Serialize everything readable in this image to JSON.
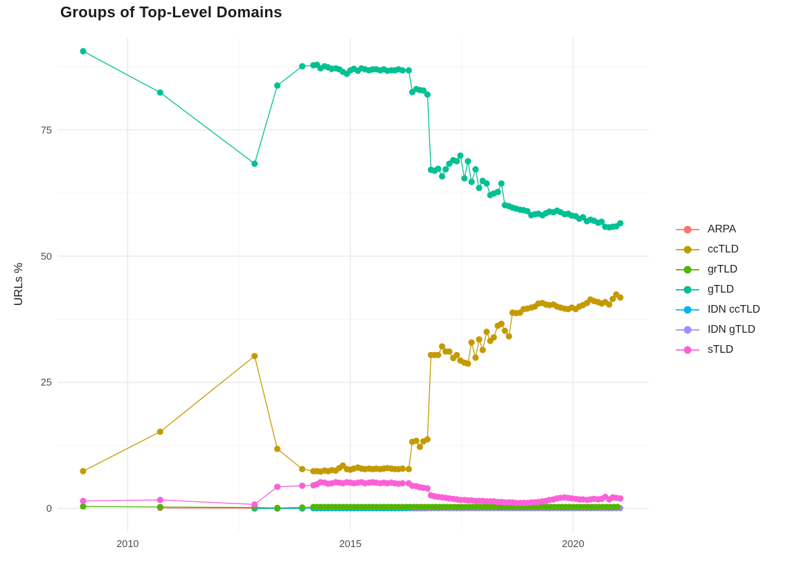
{
  "title": "Groups of Top-Level Domains",
  "chart_data": {
    "type": "line",
    "title": "Groups of Top-Level Domains",
    "xlabel": "",
    "ylabel": "URLs %",
    "x_ticks": [
      2010,
      2015,
      2020
    ],
    "x_minor_ticks": [
      2012.5,
      2017.5
    ],
    "y_ticks": [
      0,
      25,
      50,
      75
    ],
    "y_minor_ticks": [
      12.5,
      37.5,
      62.5,
      87.5
    ],
    "xlim": [
      2008.44,
      2021.7
    ],
    "ylim": [
      -4.5,
      93.2
    ],
    "grid": "on",
    "legend_position": "right",
    "grid_major_color": "#e8e8e8",
    "grid_minor_color": "#f3f3f3",
    "tick_label_color": "#4d4d4d",
    "point_radius": 4.6,
    "series": [
      {
        "name": "ARPA",
        "color": "#F8766D",
        "z": 1,
        "points": [
          [
            2010.73,
            0.1
          ],
          [
            2012.85,
            0.05
          ]
        ]
      },
      {
        "name": "ccTLD",
        "color": "#C49A00",
        "z": 5,
        "points": [
          [
            2009.0,
            7.4
          ],
          [
            2010.73,
            15.2
          ],
          [
            2012.85,
            30.2
          ],
          [
            2013.36,
            11.8
          ],
          [
            2013.92,
            7.8
          ],
          [
            2014.17,
            7.4
          ],
          [
            2014.25,
            7.4
          ],
          [
            2014.33,
            7.3
          ],
          [
            2014.42,
            7.5
          ],
          [
            2014.5,
            7.4
          ],
          [
            2014.58,
            7.6
          ],
          [
            2014.67,
            7.5
          ],
          [
            2014.75,
            8.0
          ],
          [
            2014.83,
            8.5
          ],
          [
            2014.92,
            7.8
          ],
          [
            2015.0,
            7.7
          ],
          [
            2015.08,
            7.9
          ],
          [
            2015.17,
            8.1
          ],
          [
            2015.25,
            7.9
          ],
          [
            2015.33,
            7.8
          ],
          [
            2015.42,
            7.9
          ],
          [
            2015.5,
            7.8
          ],
          [
            2015.58,
            7.9
          ],
          [
            2015.67,
            7.8
          ],
          [
            2015.75,
            7.9
          ],
          [
            2015.83,
            8.0
          ],
          [
            2015.92,
            7.9
          ],
          [
            2016.0,
            7.8
          ],
          [
            2016.08,
            7.8
          ],
          [
            2016.17,
            7.9
          ],
          [
            2016.31,
            7.8
          ],
          [
            2016.39,
            13.2
          ],
          [
            2016.48,
            13.4
          ],
          [
            2016.56,
            12.2
          ],
          [
            2016.64,
            13.3
          ],
          [
            2016.73,
            13.7
          ],
          [
            2016.81,
            30.4
          ],
          [
            2016.89,
            30.4
          ],
          [
            2016.97,
            30.4
          ],
          [
            2017.06,
            32.1
          ],
          [
            2017.14,
            31.1
          ],
          [
            2017.22,
            31.1
          ],
          [
            2017.31,
            29.8
          ],
          [
            2017.39,
            30.4
          ],
          [
            2017.47,
            29.3
          ],
          [
            2017.56,
            28.9
          ],
          [
            2017.64,
            28.7
          ],
          [
            2017.72,
            32.9
          ],
          [
            2017.81,
            29.9
          ],
          [
            2017.89,
            33.5
          ],
          [
            2017.97,
            31.4
          ],
          [
            2018.06,
            35.0
          ],
          [
            2018.14,
            33.2
          ],
          [
            2018.22,
            33.9
          ],
          [
            2018.31,
            36.2
          ],
          [
            2018.39,
            36.6
          ],
          [
            2018.47,
            35.2
          ],
          [
            2018.56,
            34.1
          ],
          [
            2018.64,
            38.8
          ],
          [
            2018.72,
            38.7
          ],
          [
            2018.81,
            38.8
          ],
          [
            2018.89,
            39.5
          ],
          [
            2018.97,
            39.6
          ],
          [
            2019.06,
            39.8
          ],
          [
            2019.14,
            40.0
          ],
          [
            2019.22,
            40.6
          ],
          [
            2019.31,
            40.7
          ],
          [
            2019.39,
            40.4
          ],
          [
            2019.47,
            40.3
          ],
          [
            2019.56,
            40.4
          ],
          [
            2019.64,
            40.0
          ],
          [
            2019.72,
            39.8
          ],
          [
            2019.81,
            39.6
          ],
          [
            2019.89,
            39.5
          ],
          [
            2019.97,
            39.8
          ],
          [
            2020.06,
            39.5
          ],
          [
            2020.14,
            40.0
          ],
          [
            2020.22,
            40.3
          ],
          [
            2020.31,
            40.7
          ],
          [
            2020.39,
            41.4
          ],
          [
            2020.47,
            41.1
          ],
          [
            2020.56,
            40.9
          ],
          [
            2020.64,
            40.6
          ],
          [
            2020.72,
            40.9
          ],
          [
            2020.81,
            40.4
          ],
          [
            2020.89,
            41.5
          ],
          [
            2020.97,
            42.4
          ],
          [
            2021.06,
            41.8
          ]
        ]
      },
      {
        "name": "grTLD",
        "color": "#53B400",
        "z": 4,
        "points": [
          [
            2009.0,
            0.4
          ],
          [
            2010.73,
            0.3
          ],
          [
            2012.85,
            0.2
          ],
          [
            2013.36,
            0.1
          ],
          [
            2013.92,
            0.2
          ]
        ],
        "span": {
          "from": 2014.17,
          "to": 2021.06,
          "step": 0.0833,
          "value": 0.3
        }
      },
      {
        "name": "gTLD",
        "color": "#00C094",
        "z": 6,
        "points": [
          [
            2009.0,
            90.6
          ],
          [
            2010.73,
            82.4
          ],
          [
            2012.85,
            68.3
          ],
          [
            2013.36,
            83.8
          ],
          [
            2013.92,
            87.6
          ],
          [
            2014.17,
            87.8
          ],
          [
            2014.25,
            87.9
          ],
          [
            2014.33,
            87.2
          ],
          [
            2014.42,
            87.6
          ],
          [
            2014.5,
            87.4
          ],
          [
            2014.58,
            87.1
          ],
          [
            2014.67,
            87.2
          ],
          [
            2014.75,
            87.0
          ],
          [
            2014.83,
            86.5
          ],
          [
            2014.92,
            86.1
          ],
          [
            2015.0,
            86.8
          ],
          [
            2015.08,
            87.1
          ],
          [
            2015.17,
            86.7
          ],
          [
            2015.25,
            87.2
          ],
          [
            2015.33,
            87.0
          ],
          [
            2015.42,
            86.8
          ],
          [
            2015.5,
            87.0
          ],
          [
            2015.58,
            87.0
          ],
          [
            2015.67,
            86.8
          ],
          [
            2015.75,
            87.0
          ],
          [
            2015.83,
            86.7
          ],
          [
            2015.92,
            86.8
          ],
          [
            2016.0,
            86.8
          ],
          [
            2016.08,
            87.0
          ],
          [
            2016.17,
            86.8
          ],
          [
            2016.31,
            86.8
          ],
          [
            2016.39,
            82.5
          ],
          [
            2016.48,
            83.1
          ],
          [
            2016.56,
            82.9
          ],
          [
            2016.64,
            82.8
          ],
          [
            2016.73,
            82.0
          ],
          [
            2016.81,
            67.1
          ],
          [
            2016.89,
            66.9
          ],
          [
            2016.97,
            67.3
          ],
          [
            2017.06,
            65.8
          ],
          [
            2017.14,
            67.2
          ],
          [
            2017.22,
            68.3
          ],
          [
            2017.31,
            69.0
          ],
          [
            2017.39,
            68.8
          ],
          [
            2017.47,
            69.9
          ],
          [
            2017.56,
            65.4
          ],
          [
            2017.64,
            68.8
          ],
          [
            2017.72,
            64.7
          ],
          [
            2017.81,
            67.2
          ],
          [
            2017.89,
            63.5
          ],
          [
            2017.97,
            64.9
          ],
          [
            2018.06,
            64.4
          ],
          [
            2018.14,
            62.1
          ],
          [
            2018.22,
            62.4
          ],
          [
            2018.31,
            62.7
          ],
          [
            2018.39,
            64.4
          ],
          [
            2018.47,
            60.1
          ],
          [
            2018.56,
            59.9
          ],
          [
            2018.64,
            59.6
          ],
          [
            2018.72,
            59.4
          ],
          [
            2018.81,
            59.2
          ],
          [
            2018.89,
            59.1
          ],
          [
            2018.97,
            58.9
          ],
          [
            2019.06,
            58.1
          ],
          [
            2019.14,
            58.3
          ],
          [
            2019.22,
            58.4
          ],
          [
            2019.31,
            58.1
          ],
          [
            2019.39,
            58.5
          ],
          [
            2019.47,
            58.8
          ],
          [
            2019.56,
            58.7
          ],
          [
            2019.64,
            59.0
          ],
          [
            2019.72,
            58.7
          ],
          [
            2019.81,
            58.3
          ],
          [
            2019.89,
            58.4
          ],
          [
            2019.97,
            58.0
          ],
          [
            2020.06,
            57.9
          ],
          [
            2020.14,
            57.4
          ],
          [
            2020.22,
            57.7
          ],
          [
            2020.31,
            56.9
          ],
          [
            2020.39,
            57.2
          ],
          [
            2020.47,
            57.0
          ],
          [
            2020.56,
            56.6
          ],
          [
            2020.64,
            56.8
          ],
          [
            2020.72,
            55.8
          ],
          [
            2020.81,
            55.7
          ],
          [
            2020.89,
            55.8
          ],
          [
            2020.97,
            55.9
          ],
          [
            2021.06,
            56.5
          ]
        ]
      },
      {
        "name": "IDN ccTLD",
        "color": "#00B6EB",
        "z": 2,
        "points": [
          [
            2012.85,
            0.0
          ],
          [
            2013.36,
            0.0
          ],
          [
            2013.92,
            0.0
          ]
        ],
        "span": {
          "from": 2014.17,
          "to": 2016.73,
          "step": 0.0833,
          "value": 0.05
        }
      },
      {
        "name": "IDN gTLD",
        "color": "#A58AFF",
        "z": 3,
        "span": {
          "from": 2016.39,
          "to": 2021.06,
          "step": 0.0833,
          "value": 0.05
        }
      },
      {
        "name": "sTLD",
        "color": "#FB61D7",
        "z": 7,
        "points": [
          [
            2009.0,
            1.5
          ],
          [
            2010.73,
            1.7
          ],
          [
            2012.85,
            0.8
          ],
          [
            2013.36,
            4.3
          ],
          [
            2013.92,
            4.5
          ],
          [
            2014.17,
            4.6
          ],
          [
            2014.25,
            4.8
          ],
          [
            2014.33,
            5.2
          ],
          [
            2014.42,
            5.1
          ],
          [
            2014.5,
            4.9
          ],
          [
            2014.58,
            5.0
          ],
          [
            2014.67,
            5.2
          ],
          [
            2014.75,
            5.1
          ],
          [
            2014.83,
            5.0
          ],
          [
            2014.92,
            5.2
          ],
          [
            2015.0,
            5.1
          ],
          [
            2015.08,
            5.0
          ],
          [
            2015.17,
            5.1
          ],
          [
            2015.25,
            5.2
          ],
          [
            2015.33,
            5.0
          ],
          [
            2015.42,
            5.1
          ],
          [
            2015.5,
            5.2
          ],
          [
            2015.58,
            5.1
          ],
          [
            2015.67,
            5.0
          ],
          [
            2015.75,
            5.1
          ],
          [
            2015.83,
            5.0
          ],
          [
            2015.92,
            5.1
          ],
          [
            2016.0,
            5.0
          ],
          [
            2016.08,
            4.9
          ],
          [
            2016.17,
            5.0
          ],
          [
            2016.31,
            5.0
          ],
          [
            2016.39,
            4.5
          ],
          [
            2016.48,
            4.4
          ],
          [
            2016.56,
            4.2
          ],
          [
            2016.64,
            4.1
          ],
          [
            2016.73,
            4.0
          ],
          [
            2016.81,
            2.6
          ],
          [
            2016.89,
            2.4
          ],
          [
            2016.97,
            2.3
          ],
          [
            2017.06,
            2.2
          ],
          [
            2017.14,
            2.1
          ],
          [
            2017.22,
            2.0
          ],
          [
            2017.31,
            1.9
          ],
          [
            2017.39,
            1.8
          ],
          [
            2017.47,
            1.7
          ],
          [
            2017.56,
            1.7
          ],
          [
            2017.64,
            1.6
          ],
          [
            2017.72,
            1.6
          ],
          [
            2017.81,
            1.5
          ],
          [
            2017.89,
            1.5
          ],
          [
            2017.97,
            1.5
          ],
          [
            2018.06,
            1.4
          ],
          [
            2018.14,
            1.4
          ],
          [
            2018.22,
            1.4
          ],
          [
            2018.31,
            1.3
          ],
          [
            2018.39,
            1.3
          ],
          [
            2018.47,
            1.2
          ],
          [
            2018.56,
            1.2
          ],
          [
            2018.64,
            1.2
          ],
          [
            2018.72,
            1.1
          ],
          [
            2018.81,
            1.1
          ],
          [
            2018.89,
            1.1
          ],
          [
            2018.97,
            1.1
          ],
          [
            2019.06,
            1.2
          ],
          [
            2019.14,
            1.2
          ],
          [
            2019.22,
            1.3
          ],
          [
            2019.31,
            1.4
          ],
          [
            2019.39,
            1.5
          ],
          [
            2019.47,
            1.7
          ],
          [
            2019.56,
            1.8
          ],
          [
            2019.64,
            2.0
          ],
          [
            2019.72,
            2.1
          ],
          [
            2019.81,
            2.2
          ],
          [
            2019.89,
            2.1
          ],
          [
            2019.97,
            2.0
          ],
          [
            2020.06,
            1.9
          ],
          [
            2020.14,
            1.8
          ],
          [
            2020.22,
            1.8
          ],
          [
            2020.31,
            1.7
          ],
          [
            2020.39,
            1.8
          ],
          [
            2020.47,
            1.9
          ],
          [
            2020.56,
            1.8
          ],
          [
            2020.64,
            1.9
          ],
          [
            2020.72,
            2.3
          ],
          [
            2020.81,
            1.8
          ],
          [
            2020.89,
            2.2
          ],
          [
            2020.97,
            2.1
          ],
          [
            2021.06,
            2.0
          ]
        ]
      }
    ]
  }
}
